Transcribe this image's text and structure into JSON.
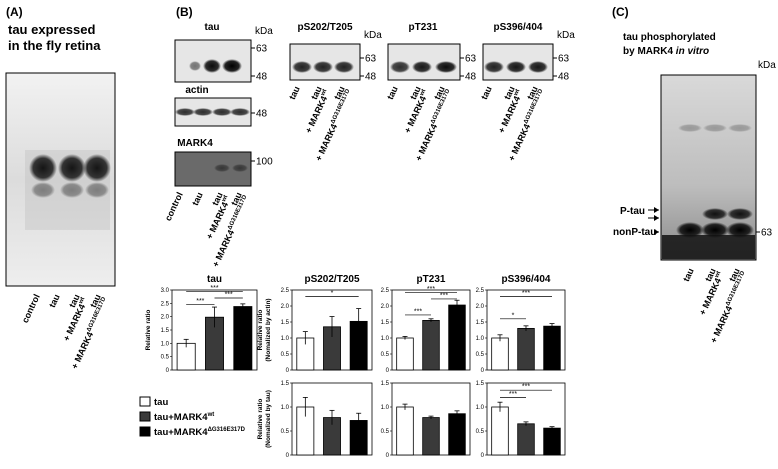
{
  "panel_a": {
    "label": "(A)",
    "title": [
      "tau expressed",
      "in the fly retina"
    ],
    "lanes": [
      [
        {
          "text": "control"
        }
      ],
      [
        {
          "text": "tau"
        }
      ],
      [
        {
          "text": "tau"
        },
        {
          "text": "+ MARK4",
          "sup": "wt"
        }
      ],
      [
        {
          "text": "tau"
        },
        {
          "text": "+ MARK4",
          "sup": "ΔG316E317D"
        }
      ]
    ]
  },
  "panel_b": {
    "label": "(B)",
    "blots": [
      {
        "title": "tau",
        "kda": "kDa",
        "markers": [
          63,
          48
        ]
      },
      {
        "title": "actin",
        "markers": [
          48
        ]
      },
      {
        "title": "MARK4",
        "markers": [
          100
        ],
        "lanes": [
          [
            {
              "text": "control"
            }
          ],
          [
            {
              "text": "tau"
            }
          ],
          [
            {
              "text": "tau"
            },
            {
              "text": "+ MARK4",
              "sup": "wt"
            }
          ],
          [
            {
              "text": "tau"
            },
            {
              "text": "+ MARK4",
              "sup": "ΔG316E317D"
            }
          ]
        ]
      },
      {
        "title": "pS202/T205",
        "kda": "kDa",
        "markers": [
          63,
          48
        ],
        "lanes": [
          [
            {
              "text": "tau"
            }
          ],
          [
            {
              "text": "tau"
            },
            {
              "text": "+ MARK4",
              "sup": "wt"
            }
          ],
          [
            {
              "text": "tau"
            },
            {
              "text": "+ MARK4",
              "sup": "ΔG316E317D"
            }
          ]
        ]
      },
      {
        "title": "pT231",
        "markers": [
          63,
          48
        ],
        "lanes": [
          [
            {
              "text": "tau"
            }
          ],
          [
            {
              "text": "tau"
            },
            {
              "text": "+ MARK4",
              "sup": "wt"
            }
          ],
          [
            {
              "text": "tau"
            },
            {
              "text": "+ MARK4",
              "sup": "ΔG316E317D"
            }
          ]
        ]
      },
      {
        "title": "pS396/404",
        "kda": "kDa",
        "markers": [
          63,
          48
        ],
        "lanes": [
          [
            {
              "text": "tau"
            }
          ],
          [
            {
              "text": "tau"
            },
            {
              "text": "+ MARK4",
              "sup": "wt"
            }
          ],
          [
            {
              "text": "tau"
            },
            {
              "text": "+ MARK4",
              "sup": "ΔG316E317D"
            }
          ]
        ]
      }
    ],
    "legend": [
      {
        "text": "tau",
        "color": "#ffffff"
      },
      {
        "text": "tau+MARK4",
        "sup": "wt",
        "color": "#3a3a3a"
      },
      {
        "text": "tau+MARK4",
        "sup": "ΔG316E317D",
        "color": "#000000"
      }
    ]
  },
  "panel_c": {
    "label": "(C)",
    "title": [
      {
        "text": "tau phosphorylated"
      },
      {
        "text": "by MARK4 ",
        "italic": "in vitro"
      }
    ],
    "kda": "kDa",
    "bands": [
      "P-tau",
      "nonP-tau"
    ],
    "marker": 63,
    "lanes": [
      [
        {
          "text": "tau"
        }
      ],
      [
        {
          "text": "tau"
        },
        {
          "text": "+ MARK4",
          "sup": "wt"
        }
      ],
      [
        {
          "text": "tau"
        },
        {
          "text": "+ MARK4",
          "sup": "ΔG316E317D"
        }
      ]
    ]
  },
  "chart_data": [
    {
      "type": "bar",
      "title": "tau",
      "ylabel": [
        "Relative ratio"
      ],
      "values": [
        1.0,
        1.98,
        2.38
      ],
      "errors": [
        0.15,
        0.38,
        0.1
      ],
      "ylim": [
        0,
        3
      ],
      "yticks": [
        0,
        0.5,
        {
          "value": 1,
          "label": "1.0"
        },
        1.5,
        {
          "value": 2,
          "label": "2.0"
        },
        2.5,
        {
          "value": 3,
          "label": "3.0"
        }
      ],
      "significance": [
        "***",
        "***",
        "***"
      ]
    },
    {
      "type": "bar",
      "title": "pS202/T205",
      "ylabel": [
        "Relative ratio",
        "(Nomalized by actin)"
      ],
      "values": [
        1.0,
        1.35,
        1.52
      ],
      "errors": [
        0.2,
        0.32,
        0.4
      ],
      "ylim": [
        0,
        2.5
      ],
      "yticks": [
        0,
        0.5,
        {
          "value": 1,
          "label": "1.0"
        },
        1.5,
        {
          "value": 2,
          "label": "2.0"
        },
        2.5
      ],
      "significance": [
        "*"
      ]
    },
    {
      "type": "bar",
      "title": "pT231",
      "values": [
        1.0,
        1.55,
        2.03
      ],
      "errors": [
        0.05,
        0.05,
        0.15
      ],
      "ylim": [
        0,
        2.5
      ],
      "yticks": [
        0,
        0.5,
        {
          "value": 1,
          "label": "1.0"
        },
        1.5,
        {
          "value": 2,
          "label": "2.0"
        },
        2.5
      ],
      "significance": [
        "***",
        "***",
        "***"
      ]
    },
    {
      "type": "bar",
      "title": "pS396/404",
      "values": [
        1.0,
        1.3,
        1.37
      ],
      "errors": [
        0.1,
        0.08,
        0.08
      ],
      "ylim": [
        0,
        2.5
      ],
      "yticks": [
        0,
        0.5,
        {
          "value": 1,
          "label": "1.0"
        },
        1.5,
        {
          "value": 2,
          "label": "2.0"
        },
        2.5
      ],
      "significance": [
        "***",
        "*"
      ]
    },
    {
      "type": "bar",
      "ylabel": [
        "Relative ratio",
        "(Nomalized by tau)"
      ],
      "values": [
        1.0,
        0.78,
        0.72
      ],
      "errors": [
        0.2,
        0.15,
        0.15
      ],
      "ylim": [
        0,
        1.5
      ],
      "yticks": [
        0,
        0.5,
        {
          "value": 1,
          "label": "1.0"
        },
        1.5
      ]
    },
    {
      "type": "bar",
      "values": [
        1.0,
        0.78,
        0.86
      ],
      "errors": [
        0.06,
        0.03,
        0.06
      ],
      "ylim": [
        0,
        1.5
      ],
      "yticks": [
        0,
        0.5,
        {
          "value": 1,
          "label": "1.0"
        },
        1.5
      ]
    },
    {
      "type": "bar",
      "values": [
        1.0,
        0.65,
        0.56
      ],
      "errors": [
        0.1,
        0.04,
        0.03
      ],
      "ylim": [
        0,
        1.5
      ],
      "yticks": [
        0,
        0.5,
        {
          "value": 1,
          "label": "1.0"
        },
        1.5
      ],
      "significance": [
        "***",
        "***"
      ]
    }
  ]
}
